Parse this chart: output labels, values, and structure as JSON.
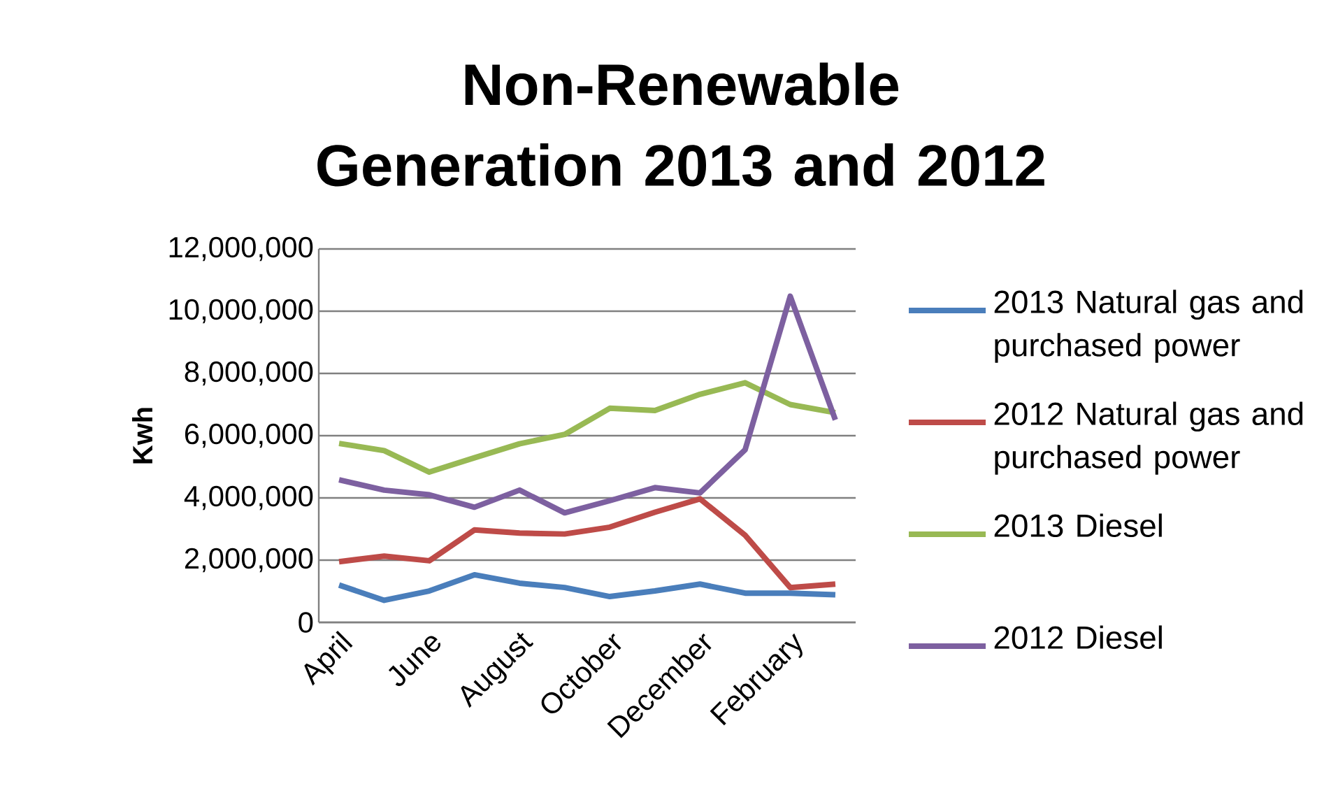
{
  "chart_data": {
    "type": "line",
    "title": "Non-Renewable Generation 2013 and 2012",
    "ylabel": "Kwh",
    "categories": [
      "April",
      null,
      "June",
      null,
      "August",
      null,
      "October",
      null,
      "December",
      null,
      "February",
      null
    ],
    "ylim": [
      0,
      12000000
    ],
    "yticks": [
      0,
      {
        "value": 2000000,
        "label": "2,000,000"
      },
      {
        "value": 4000000,
        "label": "4,000,000"
      },
      {
        "value": 6000000,
        "label": "6,000,000"
      },
      {
        "value": 8000000,
        "label": "8,000,000"
      },
      {
        "value": 10000000,
        "label": "10,000,000"
      },
      {
        "value": 12000000,
        "label": "12,000,000"
      }
    ],
    "grid": "y",
    "legend": "right",
    "marker": "none",
    "line_style": "solid",
    "series": [
      {
        "name": "2013 Natural gas and purchased power",
        "color": "#4a7ebb",
        "values": [
          1200000,
          710000,
          1010000,
          1530000,
          1260000,
          1120000,
          830000,
          1010000,
          1230000,
          940000,
          940000,
          890000
        ]
      },
      {
        "name": "2012 Natural gas and purchased power",
        "color": "#be4b48",
        "values": [
          1950000,
          2130000,
          1980000,
          2970000,
          2870000,
          2840000,
          3060000,
          3540000,
          3970000,
          2800000,
          1120000,
          1230000
        ]
      },
      {
        "name": "2013 Diesel",
        "color": "#98b954",
        "values": [
          5750000,
          5520000,
          4830000,
          5290000,
          5740000,
          6040000,
          6880000,
          6810000,
          7330000,
          7700000,
          7000000,
          6740000
        ]
      },
      {
        "name": "2012 Diesel",
        "color": "#7d60a0",
        "values": [
          4580000,
          4250000,
          4100000,
          3700000,
          4250000,
          3520000,
          3910000,
          4330000,
          4160000,
          5550000,
          10480000,
          6510000
        ]
      }
    ]
  }
}
